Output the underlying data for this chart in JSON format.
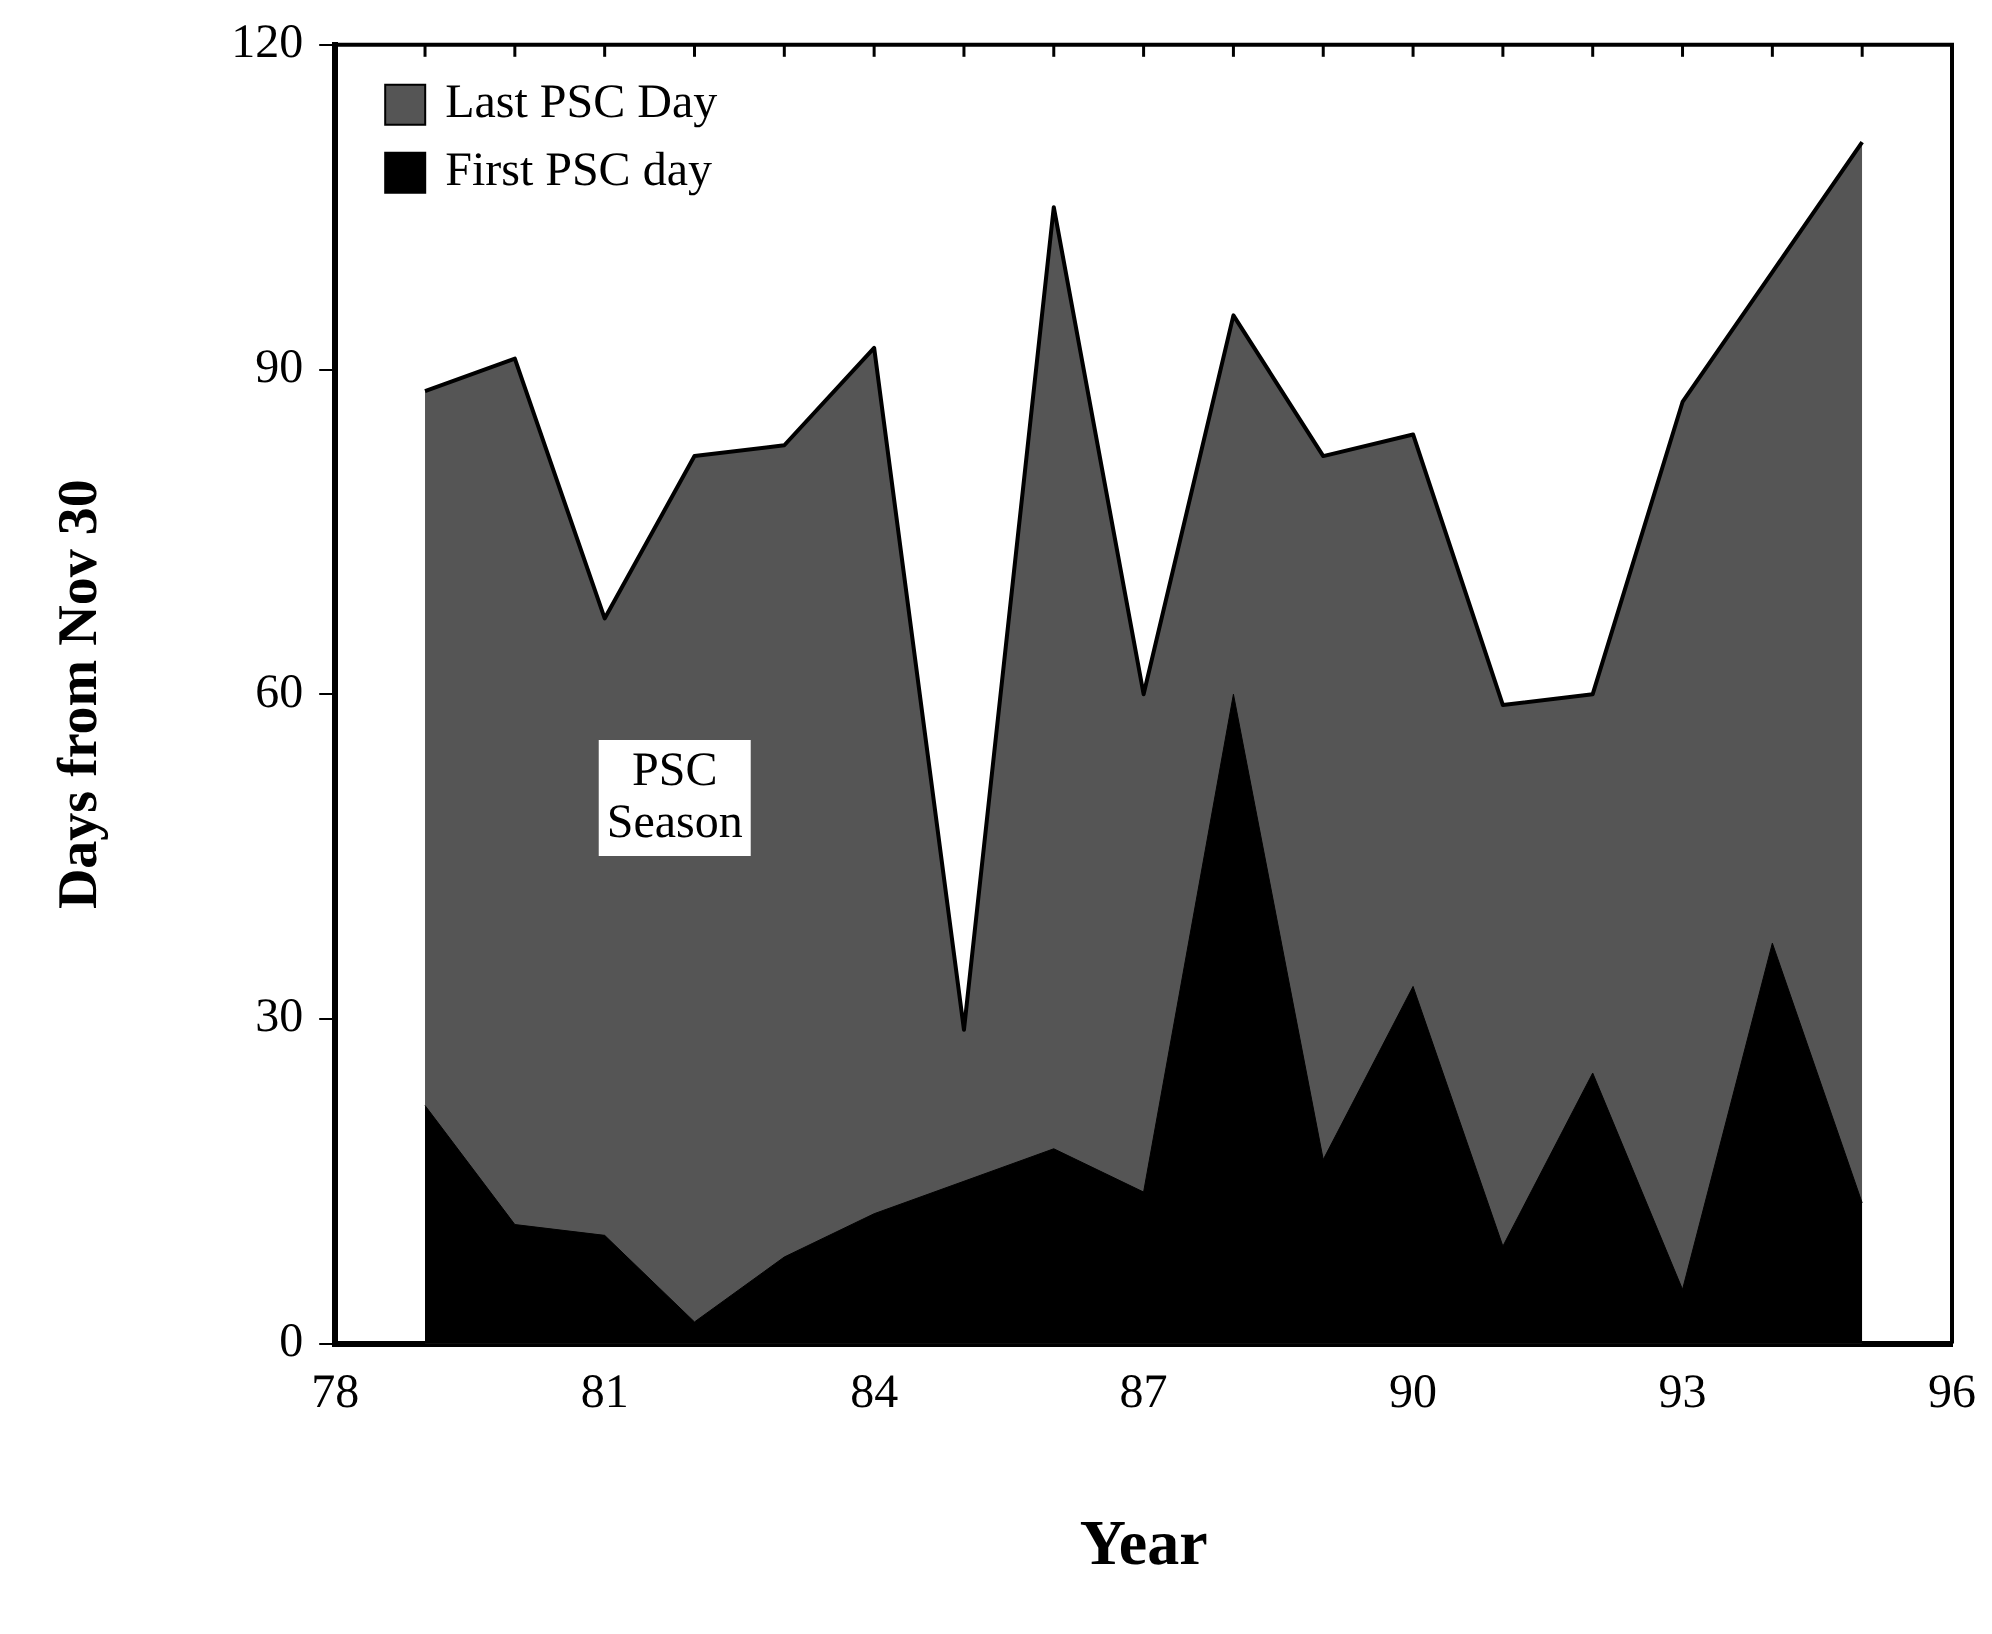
{
  "chart_data": {
    "type": "area",
    "xlabel": "Year",
    "ylabel": "Days from Nov 30",
    "x": [
      79,
      80,
      81,
      82,
      83,
      84,
      85,
      86,
      87,
      88,
      89,
      90,
      91,
      92,
      93,
      94,
      95
    ],
    "series": [
      {
        "name": "Last PSC Day",
        "color": "#555555",
        "values": [
          88,
          91,
          67,
          82,
          83,
          92,
          29,
          105,
          60,
          95,
          82,
          84,
          59,
          60,
          87,
          99,
          111
        ]
      },
      {
        "name": "First PSC day",
        "color": "#000000",
        "values": [
          22,
          11,
          10,
          2,
          8,
          12,
          15,
          18,
          14,
          60,
          17,
          33,
          9,
          25,
          5,
          37,
          13
        ]
      }
    ],
    "xlim": [
      78,
      96
    ],
    "xticks": [
      78,
      {
        "value": 79,
        "label": null
      },
      {
        "value": 80,
        "label": null
      },
      81,
      {
        "value": 82,
        "label": null
      },
      {
        "value": 83,
        "label": null
      },
      84,
      {
        "value": 85,
        "label": null
      },
      {
        "value": 86,
        "label": null
      },
      87,
      {
        "value": 88,
        "label": null
      },
      {
        "value": 89,
        "label": null
      },
      90,
      {
        "value": 91,
        "label": null
      },
      {
        "value": 92,
        "label": null
      },
      93,
      {
        "value": 94,
        "label": null
      },
      {
        "value": 95,
        "label": null
      },
      96
    ],
    "ylim": [
      0,
      120
    ],
    "yticks": [
      0,
      30,
      60,
      90,
      120
    ],
    "grid": false,
    "legend": "top left",
    "annotations": [
      "PSC Season"
    ]
  }
}
